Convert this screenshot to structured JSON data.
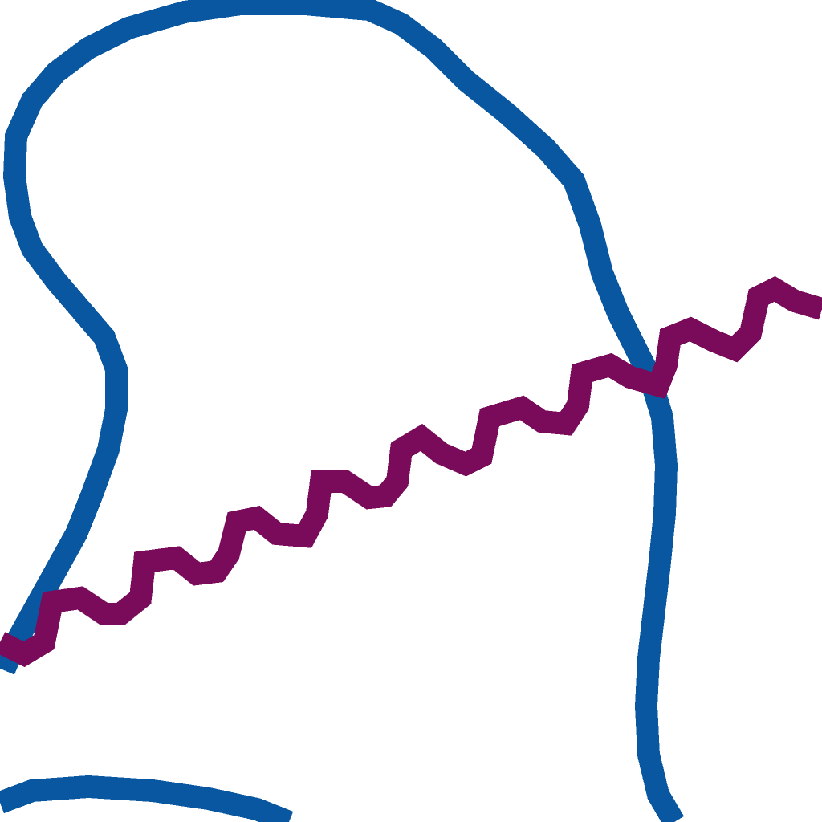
{
  "background": "#ffffff",
  "strokes": [
    {
      "id": "blue-loop-curve",
      "color": "#0857A0"
    },
    {
      "id": "blue-bottom-curve",
      "color": "#0857A0"
    },
    {
      "id": "purple-wavy-line",
      "color": "#7A0A5A"
    }
  ]
}
